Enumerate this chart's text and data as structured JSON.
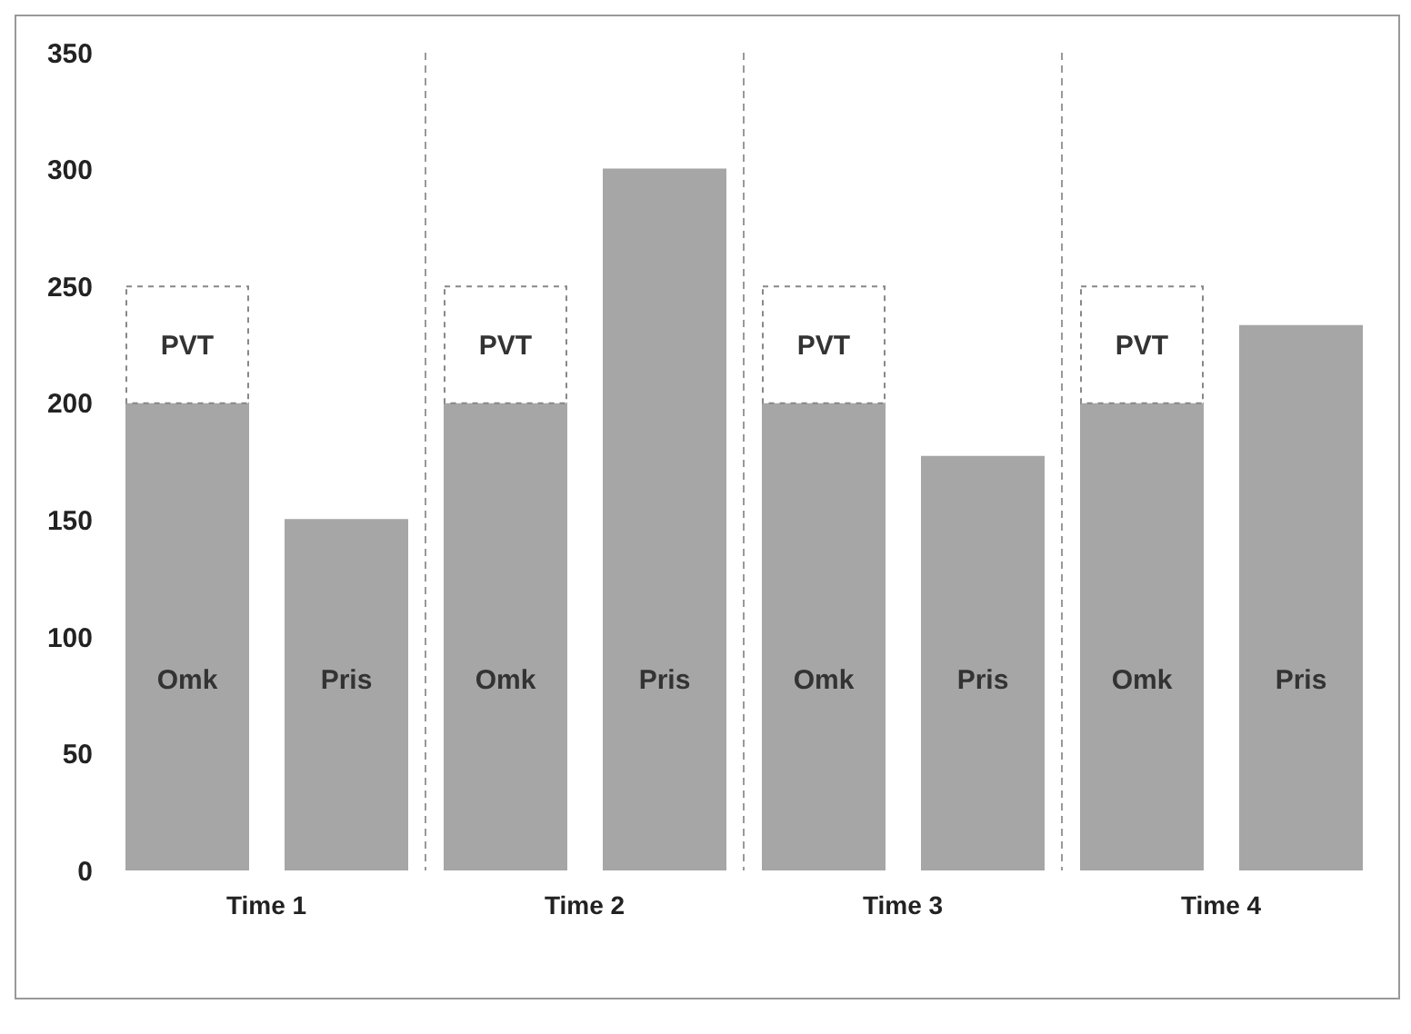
{
  "chart_data": {
    "type": "bar",
    "categories": [
      "Time 1",
      null,
      "Time 2",
      null,
      "Time 3",
      null,
      "Time 4",
      null
    ],
    "stacked": true,
    "series": [
      {
        "name": "Omk",
        "color": "#a6a6a6",
        "values": [
          200,
          null,
          200,
          null,
          200,
          null,
          200,
          null
        ]
      },
      {
        "name": "PVT",
        "color": "#ffffff",
        "values": [
          50,
          null,
          50,
          null,
          50,
          null,
          50,
          null
        ]
      },
      {
        "name": "Pris",
        "color": "#a6a6a6",
        "values": [
          null,
          150,
          null,
          300,
          null,
          177,
          null,
          233
        ]
      }
    ],
    "ylim": [
      0,
      350
    ],
    "yticks": [
      0,
      50,
      100,
      150,
      200,
      250,
      300,
      350
    ],
    "grid": "x",
    "legend": false
  }
}
